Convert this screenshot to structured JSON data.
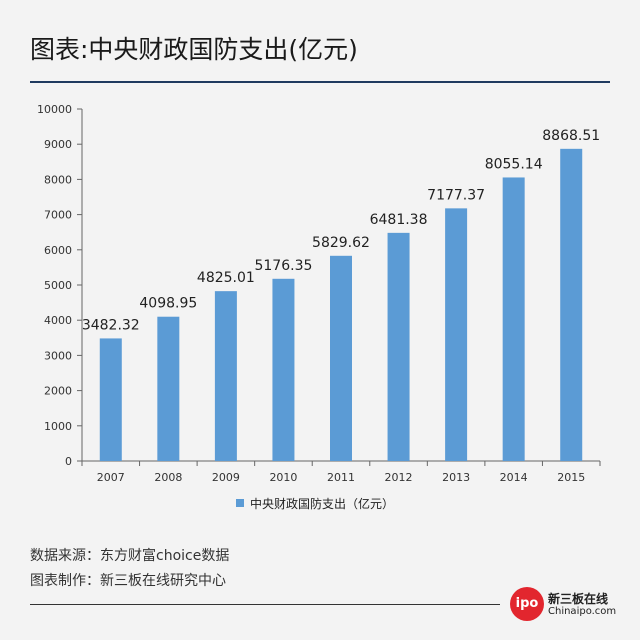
{
  "header": {
    "title": "图表:中央财政国防支出(亿元)"
  },
  "chart_data": {
    "type": "bar",
    "categories": [
      "2007",
      "2008",
      "2009",
      "2010",
      "2011",
      "2012",
      "2013",
      "2014",
      "2015"
    ],
    "series": [
      {
        "name": "中央财政国防支出（亿元）",
        "values": [
          3482.32,
          4098.95,
          4825.01,
          5176.35,
          5829.62,
          6481.38,
          7177.37,
          8055.14,
          8868.51
        ]
      }
    ],
    "value_labels": [
      "3482.32",
      "4098.95",
      "4825.01",
      "5176.35",
      "5829.62",
      "6481.38",
      "7177.37",
      "8055.14",
      "8868.51"
    ],
    "ylim": [
      0,
      10000
    ],
    "yticks": [
      0,
      1000,
      2000,
      3000,
      4000,
      5000,
      6000,
      7000,
      8000,
      9000,
      10000
    ],
    "grid": false,
    "legend_position": "bottom",
    "bar_color": "#5b9bd5"
  },
  "footer": {
    "source": "数据来源：东方财富choice数据",
    "maker": "图表制作：新三板在线研究中心"
  },
  "logo": {
    "mark": "ipo",
    "name": "新三板在线",
    "domain": "Chinaipo.com"
  }
}
